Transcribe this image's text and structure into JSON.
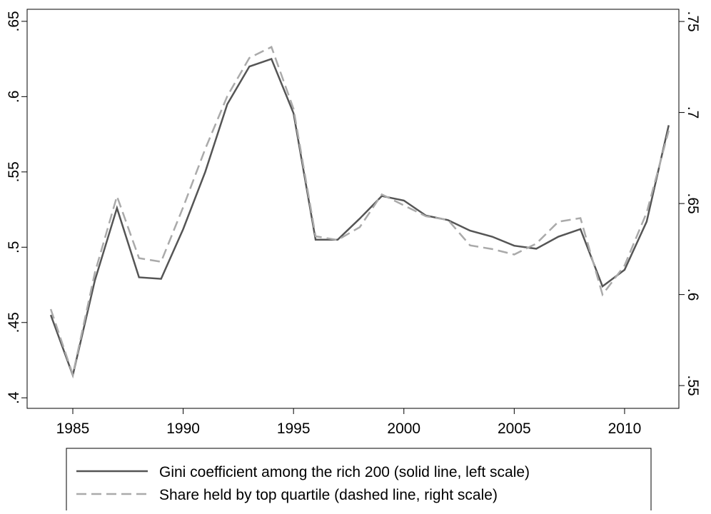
{
  "chart_data": {
    "type": "line",
    "x": [
      1984,
      1985,
      1986,
      1987,
      1988,
      1989,
      1990,
      1991,
      1992,
      1993,
      1994,
      1995,
      1996,
      1997,
      1998,
      1999,
      2000,
      2001,
      2002,
      2003,
      2004,
      2005,
      2006,
      2007,
      2008,
      2009,
      2010,
      2011,
      2012
    ],
    "series": [
      {
        "name": "Gini coefficient among the rich 200 (solid line, left scale)",
        "color": "#555555",
        "dashed": false,
        "axis": "y",
        "values": [
          0.455,
          0.415,
          0.478,
          0.526,
          0.48,
          0.479,
          0.512,
          0.55,
          0.595,
          0.62,
          0.625,
          0.589,
          0.505,
          0.505,
          0.519,
          0.534,
          0.531,
          0.521,
          0.518,
          0.511,
          0.507,
          0.501,
          0.499,
          0.507,
          0.512,
          0.474,
          0.485,
          0.517,
          0.581
        ]
      },
      {
        "name": "Share held by top quartile (dashed line, right scale)",
        "color": "#aaaaaa",
        "dashed": true,
        "axis": "y2",
        "values": [
          0.592,
          0.556,
          0.612,
          0.654,
          0.62,
          0.618,
          0.648,
          0.68,
          0.709,
          0.73,
          0.736,
          0.702,
          0.632,
          0.63,
          0.637,
          0.655,
          0.649,
          0.643,
          0.641,
          0.627,
          0.625,
          0.622,
          0.628,
          0.64,
          0.642,
          0.6,
          0.616,
          0.645,
          0.69
        ]
      }
    ],
    "xlim": [
      1982.93,
      2012.46
    ],
    "xticks": [
      1985,
      1990,
      1995,
      2000,
      2005,
      2010
    ],
    "ylim": [
      0.393,
      0.658
    ],
    "yticks": [
      {
        "value": 0.4,
        "label": ".4"
      },
      {
        "value": 0.45,
        "label": ".45"
      },
      {
        "value": 0.5,
        "label": ".5"
      },
      {
        "value": 0.55,
        "label": ".55"
      },
      {
        "value": 0.6,
        "label": ".6"
      },
      {
        "value": 0.65,
        "label": ".65"
      }
    ],
    "y2lim": [
      0.5375,
      0.7567
    ],
    "y2ticks": [
      {
        "value": 0.55,
        "label": ".55"
      },
      {
        "value": 0.6,
        "label": ".6"
      },
      {
        "value": 0.65,
        "label": ".65"
      },
      {
        "value": 0.7,
        "label": ".7"
      },
      {
        "value": 0.75,
        "label": ".75"
      }
    ]
  }
}
